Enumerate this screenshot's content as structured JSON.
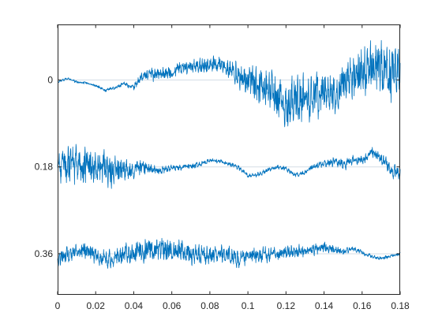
{
  "chart_data": {
    "type": "line",
    "title": "",
    "xlabel": "",
    "ylabel": "",
    "xlim": [
      0,
      0.18
    ],
    "ylim": [
      0.445,
      -0.115
    ],
    "y_direction": "reversed",
    "x_ticks": [
      0,
      0.02,
      0.04,
      0.06,
      0.08,
      0.1,
      0.12,
      0.14,
      0.16,
      0.18
    ],
    "x_tick_labels": [
      "0",
      "0.02",
      "0.04",
      "0.06",
      "0.08",
      "0.1",
      "0.12",
      "0.14",
      "0.16",
      "0.18"
    ],
    "y_ticks": [
      0,
      0.18,
      0.36
    ],
    "y_tick_labels": [
      "0",
      "0.18",
      "0.36"
    ],
    "grid": false,
    "baselines": [
      0,
      0.18,
      0.36
    ],
    "baseline_color": "#d4dde6",
    "line_color": "#0072bd",
    "series": [
      {
        "baseline": 0,
        "points": [
          [
            0.0,
            0.004
          ],
          [
            0.005,
            -0.003
          ],
          [
            0.01,
            0.004
          ],
          [
            0.015,
            0.006
          ],
          [
            0.02,
            0.012
          ],
          [
            0.025,
            0.022
          ],
          [
            0.03,
            0.016
          ],
          [
            0.035,
            0.008
          ],
          [
            0.04,
            0.014
          ],
          [
            0.045,
            -0.01
          ],
          [
            0.05,
            -0.012
          ],
          [
            0.055,
            -0.012
          ],
          [
            0.06,
            -0.016
          ],
          [
            0.065,
            -0.026
          ],
          [
            0.07,
            -0.026
          ],
          [
            0.075,
            -0.028
          ],
          [
            0.08,
            -0.032
          ],
          [
            0.085,
            -0.03
          ],
          [
            0.09,
            -0.025
          ],
          [
            0.095,
            -0.01
          ],
          [
            0.1,
            0.005
          ],
          [
            0.105,
            0.01
          ],
          [
            0.11,
            0.02
          ],
          [
            0.115,
            0.03
          ],
          [
            0.12,
            0.045
          ],
          [
            0.125,
            0.04
          ],
          [
            0.13,
            0.038
          ],
          [
            0.135,
            0.034
          ],
          [
            0.14,
            0.025
          ],
          [
            0.145,
            0.02
          ],
          [
            0.15,
            0.012
          ],
          [
            0.155,
            -0.004
          ],
          [
            0.16,
            -0.02
          ],
          [
            0.165,
            -0.03
          ],
          [
            0.17,
            -0.028
          ],
          [
            0.175,
            -0.018
          ],
          [
            0.18,
            -0.015
          ]
        ],
        "envelope": [
          [
            0.0,
            0.003
          ],
          [
            0.01,
            0.003
          ],
          [
            0.02,
            0.004
          ],
          [
            0.03,
            0.005
          ],
          [
            0.04,
            0.008
          ],
          [
            0.05,
            0.016
          ],
          [
            0.06,
            0.018
          ],
          [
            0.07,
            0.02
          ],
          [
            0.08,
            0.022
          ],
          [
            0.09,
            0.024
          ],
          [
            0.1,
            0.04
          ],
          [
            0.11,
            0.052
          ],
          [
            0.12,
            0.056
          ],
          [
            0.13,
            0.058
          ],
          [
            0.14,
            0.056
          ],
          [
            0.15,
            0.052
          ],
          [
            0.16,
            0.06
          ],
          [
            0.17,
            0.068
          ],
          [
            0.18,
            0.062
          ]
        ]
      },
      {
        "baseline": 0.18,
        "points": [
          [
            0.0,
            0.178
          ],
          [
            0.005,
            0.175
          ],
          [
            0.01,
            0.176
          ],
          [
            0.015,
            0.18
          ],
          [
            0.02,
            0.178
          ],
          [
            0.025,
            0.183
          ],
          [
            0.03,
            0.189
          ],
          [
            0.035,
            0.19
          ],
          [
            0.04,
            0.184
          ],
          [
            0.045,
            0.18
          ],
          [
            0.05,
            0.187
          ],
          [
            0.055,
            0.189
          ],
          [
            0.06,
            0.181
          ],
          [
            0.065,
            0.18
          ],
          [
            0.07,
            0.178
          ],
          [
            0.075,
            0.174
          ],
          [
            0.08,
            0.166
          ],
          [
            0.085,
            0.168
          ],
          [
            0.09,
            0.174
          ],
          [
            0.095,
            0.181
          ],
          [
            0.1,
            0.198
          ],
          [
            0.105,
            0.197
          ],
          [
            0.11,
            0.188
          ],
          [
            0.115,
            0.18
          ],
          [
            0.12,
            0.183
          ],
          [
            0.125,
            0.197
          ],
          [
            0.13,
            0.191
          ],
          [
            0.135,
            0.178
          ],
          [
            0.14,
            0.174
          ],
          [
            0.145,
            0.17
          ],
          [
            0.15,
            0.175
          ],
          [
            0.155,
            0.166
          ],
          [
            0.16,
            0.165
          ],
          [
            0.165,
            0.15
          ],
          [
            0.17,
            0.162
          ],
          [
            0.175,
            0.186
          ],
          [
            0.18,
            0.198
          ]
        ],
        "envelope": [
          [
            0.0,
            0.04
          ],
          [
            0.01,
            0.05
          ],
          [
            0.02,
            0.048
          ],
          [
            0.03,
            0.04
          ],
          [
            0.04,
            0.026
          ],
          [
            0.05,
            0.012
          ],
          [
            0.06,
            0.008
          ],
          [
            0.07,
            0.008
          ],
          [
            0.08,
            0.006
          ],
          [
            0.09,
            0.006
          ],
          [
            0.1,
            0.005
          ],
          [
            0.11,
            0.006
          ],
          [
            0.12,
            0.006
          ],
          [
            0.13,
            0.006
          ],
          [
            0.14,
            0.01
          ],
          [
            0.15,
            0.014
          ],
          [
            0.16,
            0.012
          ],
          [
            0.17,
            0.016
          ],
          [
            0.18,
            0.018
          ]
        ]
      },
      {
        "baseline": 0.36,
        "points": [
          [
            0.0,
            0.372
          ],
          [
            0.005,
            0.362
          ],
          [
            0.01,
            0.358
          ],
          [
            0.015,
            0.352
          ],
          [
            0.02,
            0.365
          ],
          [
            0.025,
            0.372
          ],
          [
            0.03,
            0.372
          ],
          [
            0.035,
            0.36
          ],
          [
            0.04,
            0.358
          ],
          [
            0.045,
            0.348
          ],
          [
            0.05,
            0.352
          ],
          [
            0.055,
            0.346
          ],
          [
            0.06,
            0.35
          ],
          [
            0.065,
            0.353
          ],
          [
            0.07,
            0.358
          ],
          [
            0.075,
            0.363
          ],
          [
            0.08,
            0.365
          ],
          [
            0.085,
            0.36
          ],
          [
            0.09,
            0.362
          ],
          [
            0.095,
            0.372
          ],
          [
            0.1,
            0.366
          ],
          [
            0.105,
            0.363
          ],
          [
            0.11,
            0.36
          ],
          [
            0.115,
            0.362
          ],
          [
            0.12,
            0.358
          ],
          [
            0.125,
            0.355
          ],
          [
            0.13,
            0.355
          ],
          [
            0.135,
            0.35
          ],
          [
            0.14,
            0.345
          ],
          [
            0.145,
            0.352
          ],
          [
            0.15,
            0.356
          ],
          [
            0.155,
            0.35
          ],
          [
            0.16,
            0.357
          ],
          [
            0.165,
            0.366
          ],
          [
            0.17,
            0.37
          ],
          [
            0.175,
            0.364
          ],
          [
            0.18,
            0.36
          ]
        ],
        "envelope": [
          [
            0.0,
            0.02
          ],
          [
            0.01,
            0.02
          ],
          [
            0.02,
            0.022
          ],
          [
            0.03,
            0.022
          ],
          [
            0.04,
            0.03
          ],
          [
            0.05,
            0.034
          ],
          [
            0.06,
            0.03
          ],
          [
            0.07,
            0.028
          ],
          [
            0.08,
            0.024
          ],
          [
            0.09,
            0.022
          ],
          [
            0.1,
            0.02
          ],
          [
            0.11,
            0.018
          ],
          [
            0.12,
            0.018
          ],
          [
            0.13,
            0.016
          ],
          [
            0.14,
            0.014
          ],
          [
            0.15,
            0.008
          ],
          [
            0.16,
            0.006
          ],
          [
            0.17,
            0.005
          ],
          [
            0.18,
            0.004
          ]
        ]
      }
    ]
  }
}
